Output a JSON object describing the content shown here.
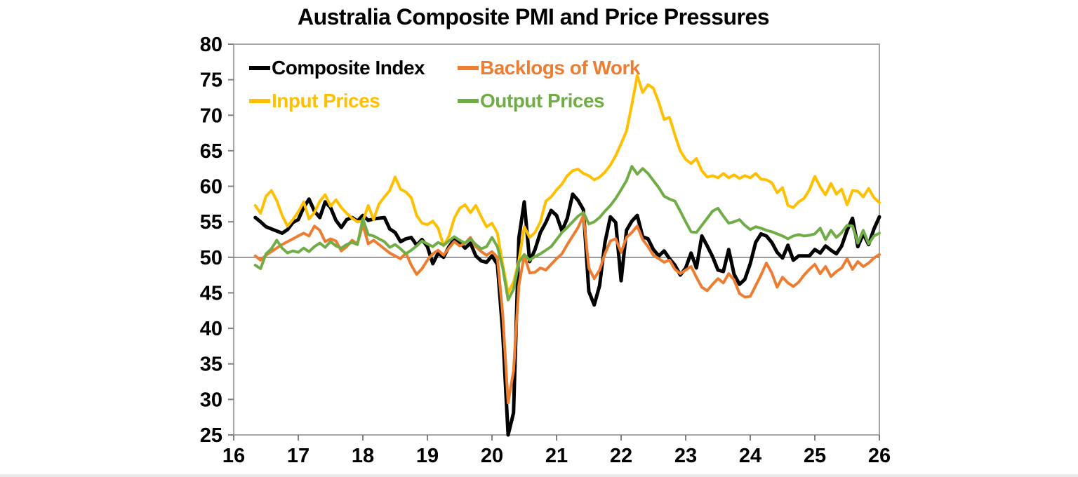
{
  "title": "Australia Composite PMI and Price Pressures",
  "colors": {
    "background": "#ffffff",
    "plot_border": "#a6a6a6",
    "tick": "#808080",
    "reference_line": "#808080",
    "composite": "#000000",
    "backlogs": "#ED7D31",
    "input_prices": "#FFC000",
    "output_prices": "#70AD47"
  },
  "chart_data": {
    "type": "line",
    "title": "Australia Composite PMI and Price Pressures",
    "xlabel": "",
    "ylabel": "",
    "x_start": "2016-05",
    "x_frequency": "monthly",
    "x_tick_labels": [
      "16",
      "17",
      "18",
      "19",
      "20",
      "21",
      "22",
      "23",
      "24",
      "25",
      "26"
    ],
    "y_ticks": [
      25,
      30,
      35,
      40,
      45,
      50,
      55,
      60,
      65,
      70,
      75,
      80
    ],
    "ylim": [
      25,
      80
    ],
    "reference_line": 50,
    "grid": false,
    "legend_position": "top-left-inside",
    "series": [
      {
        "name": "Composite Index",
        "color": "#000000",
        "line_width": 5,
        "values": [
          55.6,
          55.0,
          54.3,
          54.0,
          53.7,
          53.4,
          53.9,
          54.9,
          55.3,
          57.0,
          58.2,
          56.5,
          55.6,
          57.8,
          57.0,
          55.2,
          54.2,
          55.3,
          55.6,
          55.1,
          55.9,
          55.2,
          55.4,
          55.5,
          55.6,
          54.0,
          53.5,
          52.2,
          52.6,
          52.8,
          51.7,
          52.5,
          51.5,
          49.1,
          50.6,
          50.0,
          51.5,
          52.5,
          52.1,
          51.3,
          52.0,
          50.2,
          49.5,
          49.3,
          50.2,
          49.0,
          39.4,
          21.7,
          28.1,
          52.7,
          57.8,
          49.4,
          51.1,
          53.5,
          54.9,
          56.6,
          55.9,
          53.7,
          55.5,
          58.9,
          58.0,
          56.7,
          45.2,
          43.3,
          46.0,
          52.1,
          55.7,
          54.9,
          46.7,
          53.8,
          55.1,
          55.9,
          52.9,
          52.6,
          51.1,
          50.2,
          50.9,
          49.8,
          48.9,
          47.5,
          48.5,
          50.6,
          48.5,
          53.0,
          51.6,
          50.1,
          48.2,
          48.0,
          51.1,
          47.6,
          46.2,
          46.9,
          49.1,
          52.1,
          53.3,
          53.0,
          52.1,
          50.7,
          49.9,
          51.7,
          49.6,
          50.2,
          50.2,
          50.2,
          51.1,
          50.6,
          51.6,
          51.0,
          50.5,
          51.6,
          53.8,
          55.5,
          51.5,
          53.3,
          51.8,
          54.0,
          55.7
        ]
      },
      {
        "name": "Backlogs of Work",
        "color": "#ED7D31",
        "line_width": 4,
        "values": [
          50.2,
          49.6,
          50.3,
          50.8,
          51.3,
          51.8,
          52.2,
          52.6,
          53.0,
          53.4,
          53.0,
          54.4,
          53.8,
          52.2,
          52.6,
          52.3,
          50.9,
          51.5,
          52.4,
          51.9,
          54.6,
          51.9,
          52.4,
          51.8,
          51.2,
          50.6,
          50.2,
          49.8,
          50.6,
          48.9,
          47.6,
          48.4,
          49.6,
          50.5,
          51.0,
          50.3,
          51.3,
          52.2,
          51.6,
          52.0,
          52.8,
          51.5,
          50.8,
          50.3,
          50.8,
          50.0,
          42.0,
          29.5,
          34.0,
          46.0,
          50.3,
          47.8,
          47.9,
          48.5,
          48.2,
          49.0,
          49.8,
          50.5,
          51.8,
          53.0,
          54.2,
          55.9,
          48.5,
          47.0,
          48.2,
          50.5,
          52.3,
          52.6,
          50.7,
          52.8,
          53.5,
          54.4,
          52.5,
          51.5,
          50.3,
          49.8,
          49.3,
          49.6,
          48.3,
          47.7,
          48.2,
          48.7,
          47.2,
          45.8,
          45.3,
          46.2,
          47.0,
          46.4,
          47.7,
          46.8,
          44.9,
          44.4,
          44.5,
          46.0,
          47.5,
          49.2,
          47.8,
          45.8,
          47.2,
          46.4,
          45.9,
          46.5,
          47.5,
          48.3,
          49.0,
          47.7,
          48.7,
          47.3,
          48.0,
          48.5,
          49.8,
          48.3,
          49.4,
          48.7,
          49.2,
          49.9,
          50.4
        ]
      },
      {
        "name": "Input Prices",
        "color": "#FFC000",
        "line_width": 4,
        "values": [
          57.3,
          56.2,
          58.6,
          59.4,
          58.0,
          55.9,
          54.4,
          55.3,
          56.4,
          57.8,
          55.4,
          56.3,
          57.9,
          58.8,
          57.2,
          58.1,
          57.0,
          56.2,
          55.5,
          55.0,
          55.1,
          57.3,
          55.3,
          57.5,
          58.5,
          59.4,
          61.3,
          59.6,
          59.2,
          58.4,
          55.9,
          54.8,
          54.6,
          55.1,
          54.1,
          51.6,
          53.0,
          55.5,
          56.9,
          57.4,
          56.3,
          57.3,
          55.7,
          54.3,
          54.8,
          53.4,
          49.0,
          45.0,
          46.5,
          49.5,
          54.3,
          52.8,
          53.5,
          55.0,
          57.9,
          58.5,
          59.5,
          60.3,
          61.5,
          62.2,
          62.4,
          61.8,
          61.5,
          60.9,
          61.3,
          62.0,
          63.0,
          64.3,
          66.0,
          67.8,
          71.5,
          75.6,
          73.2,
          74.3,
          73.8,
          71.8,
          69.4,
          69.7,
          67.2,
          65.0,
          63.8,
          63.2,
          63.9,
          62.2,
          61.3,
          61.5,
          61.2,
          61.8,
          61.2,
          61.6,
          61.1,
          61.5,
          61.2,
          61.8,
          61.0,
          60.9,
          60.5,
          59.1,
          59.8,
          57.3,
          57.0,
          57.8,
          58.3,
          59.5,
          61.4,
          59.9,
          58.8,
          60.4,
          58.9,
          59.6,
          57.4,
          59.4,
          59.3,
          58.5,
          59.7,
          58.4,
          57.7
        ]
      },
      {
        "name": "Output Prices",
        "color": "#70AD47",
        "line_width": 4,
        "values": [
          48.9,
          48.4,
          50.5,
          51.2,
          52.4,
          51.3,
          50.6,
          50.9,
          50.7,
          51.3,
          50.8,
          51.5,
          52.0,
          51.4,
          52.2,
          51.6,
          51.3,
          51.8,
          52.1,
          51.8,
          55.4,
          53.2,
          53.0,
          52.6,
          52.2,
          51.4,
          51.8,
          51.2,
          50.5,
          51.0,
          51.6,
          52.3,
          51.9,
          51.5,
          52.1,
          51.7,
          52.3,
          52.9,
          52.4,
          52.0,
          52.6,
          51.8,
          51.2,
          51.5,
          52.8,
          51.5,
          48.5,
          44.0,
          45.5,
          49.3,
          50.4,
          49.6,
          50.1,
          50.5,
          51.0,
          51.5,
          52.5,
          53.5,
          54.2,
          55.0,
          55.8,
          56.3,
          54.7,
          55.0,
          55.6,
          56.5,
          57.3,
          58.3,
          59.5,
          60.8,
          62.8,
          61.7,
          62.5,
          61.8,
          60.8,
          59.8,
          58.6,
          58.2,
          57.9,
          56.5,
          55.0,
          53.6,
          53.5,
          54.5,
          55.5,
          56.5,
          56.9,
          55.8,
          54.8,
          55.0,
          55.3,
          54.5,
          53.9,
          54.3,
          54.1,
          53.8,
          53.6,
          53.3,
          53.0,
          52.6,
          53.0,
          53.2,
          53.0,
          53.1,
          53.3,
          54.1,
          52.5,
          53.8,
          52.8,
          53.5,
          54.5,
          54.4,
          52.0,
          53.8,
          51.9,
          53.0,
          53.4
        ]
      }
    ]
  },
  "legend": {
    "items": [
      "Composite Index",
      "Backlogs of Work",
      "Input Prices",
      "Output Prices"
    ]
  }
}
